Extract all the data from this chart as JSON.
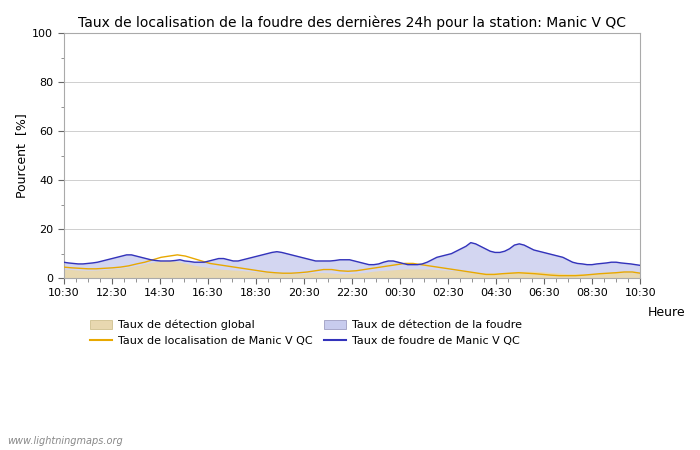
{
  "title": "Taux de localisation de la foudre des dernières 24h pour la station: Manic V QC",
  "xlabel": "Heure",
  "ylabel": "Pourcent  [%]",
  "ylim": [
    0,
    100
  ],
  "yticks": [
    0,
    20,
    40,
    60,
    80,
    100
  ],
  "xtick_labels": [
    "10:30",
    "12:30",
    "14:30",
    "16:30",
    "18:30",
    "20:30",
    "22:30",
    "00:30",
    "02:30",
    "04:30",
    "06:30",
    "08:30",
    "10:30"
  ],
  "watermark": "www.lightningmaps.org",
  "bg_color": "#ffffff",
  "plot_bg_color": "#ffffff",
  "grid_color": "#c8c8c8",
  "color_fill_global": "#e8d8b0",
  "color_fill_foudre": "#c8ccee",
  "color_loc_manic": "#e8a800",
  "color_foudre_manic": "#3333bb",
  "legend_labels": [
    "Taux de détection global",
    "Taux de localisation de Manic V QC",
    "Taux de détection de la foudre",
    "Taux de foudre de Manic V QC"
  ],
  "detection_global": [
    3.5,
    3.2,
    3.0,
    2.9,
    3.0,
    3.2,
    3.5,
    3.8,
    4.2,
    4.8,
    5.5,
    6.2,
    6.8,
    7.0,
    6.5,
    5.8,
    5.0,
    4.5,
    4.0,
    3.5,
    3.2,
    3.0,
    2.8,
    2.5,
    2.2,
    2.0,
    1.8,
    1.5,
    1.5,
    1.5,
    1.8,
    2.0,
    2.0,
    1.8,
    1.5,
    1.5,
    1.8,
    2.0,
    2.5,
    2.8,
    3.0,
    3.2,
    3.5,
    3.5,
    3.5,
    3.5,
    3.2,
    3.0,
    2.8,
    2.5,
    2.2,
    2.0,
    1.8,
    1.8,
    2.0,
    2.2,
    2.5,
    2.5,
    2.5,
    2.3,
    2.0,
    1.8,
    1.5,
    1.5,
    1.5,
    1.5,
    1.8,
    2.0,
    2.2,
    2.2,
    2.0,
    1.8
  ],
  "loc_manic": [
    4.5,
    4.2,
    4.0,
    3.8,
    3.8,
    4.0,
    4.2,
    4.5,
    5.0,
    5.8,
    6.5,
    7.5,
    8.5,
    9.0,
    9.5,
    9.0,
    8.0,
    7.0,
    6.0,
    5.5,
    5.0,
    4.5,
    4.0,
    3.5,
    3.0,
    2.5,
    2.2,
    2.0,
    2.0,
    2.2,
    2.5,
    3.0,
    3.5,
    3.5,
    3.0,
    2.8,
    3.0,
    3.5,
    4.0,
    4.5,
    5.0,
    5.5,
    6.0,
    6.0,
    5.5,
    5.0,
    4.5,
    4.0,
    3.5,
    3.0,
    2.5,
    2.0,
    1.5,
    1.5,
    1.8,
    2.0,
    2.2,
    2.0,
    1.8,
    1.5,
    1.2,
    1.0,
    1.0,
    1.0,
    1.2,
    1.5,
    1.8,
    2.0,
    2.2,
    2.5,
    2.5,
    2.0
  ],
  "detection_foudre": [
    5.5,
    5.2,
    5.0,
    4.8,
    4.8,
    5.0,
    5.2,
    5.5,
    6.0,
    6.5,
    7.0,
    7.5,
    8.0,
    8.0,
    7.5,
    7.0,
    6.5,
    6.0,
    5.8,
    5.5,
    5.5,
    5.5,
    5.5,
    5.5,
    5.2,
    5.0,
    5.0,
    5.0,
    5.2,
    5.5,
    5.8,
    6.0,
    6.0,
    5.8,
    5.5,
    5.2,
    5.2,
    5.5,
    6.0,
    6.5,
    7.0,
    7.5,
    8.0,
    8.5,
    9.0,
    9.0,
    8.5,
    8.0,
    7.5,
    7.0,
    6.5,
    6.0,
    5.5,
    5.2,
    5.0,
    5.0,
    5.2,
    5.5,
    5.8,
    6.0,
    5.8,
    5.5,
    5.2,
    5.0,
    5.0,
    5.0,
    5.0,
    5.0,
    5.0,
    5.0,
    5.2,
    5.5
  ],
  "foudre_manic": [
    6.5,
    6.2,
    6.0,
    5.8,
    5.8,
    6.0,
    6.2,
    6.5,
    7.0,
    7.5,
    8.0,
    8.5,
    9.0,
    9.5,
    9.5,
    9.0,
    8.5,
    8.0,
    7.5,
    7.2,
    7.0,
    7.0,
    7.0,
    7.2,
    7.5,
    7.0,
    6.8,
    6.5,
    6.5,
    6.5,
    7.0,
    7.5,
    8.0,
    8.0,
    7.5,
    7.0,
    7.0,
    7.5,
    8.0,
    8.5,
    9.0,
    9.5,
    10.0,
    10.5,
    10.8,
    10.5,
    10.0,
    9.5,
    9.0,
    8.5,
    8.0,
    7.5,
    7.0,
    7.0,
    7.0,
    7.0,
    7.2,
    7.5,
    7.5,
    7.5,
    7.0,
    6.5,
    6.0,
    5.5,
    5.5,
    5.8,
    6.5,
    7.0,
    7.0,
    6.5,
    6.0,
    5.5,
    5.5,
    5.5,
    5.8,
    6.5,
    7.5,
    8.5,
    9.0,
    9.5,
    10.0,
    11.0,
    12.0,
    13.0,
    14.5,
    14.0,
    13.0,
    12.0,
    11.0,
    10.5,
    10.5,
    11.0,
    12.0,
    13.5,
    14.0,
    13.5,
    12.5,
    11.5,
    11.0,
    10.5,
    10.0,
    9.5,
    9.0,
    8.5,
    7.5,
    6.5,
    6.0,
    5.8,
    5.5,
    5.5,
    5.8,
    6.0,
    6.2,
    6.5,
    6.5,
    6.2,
    6.0,
    5.8,
    5.5,
    5.2
  ]
}
